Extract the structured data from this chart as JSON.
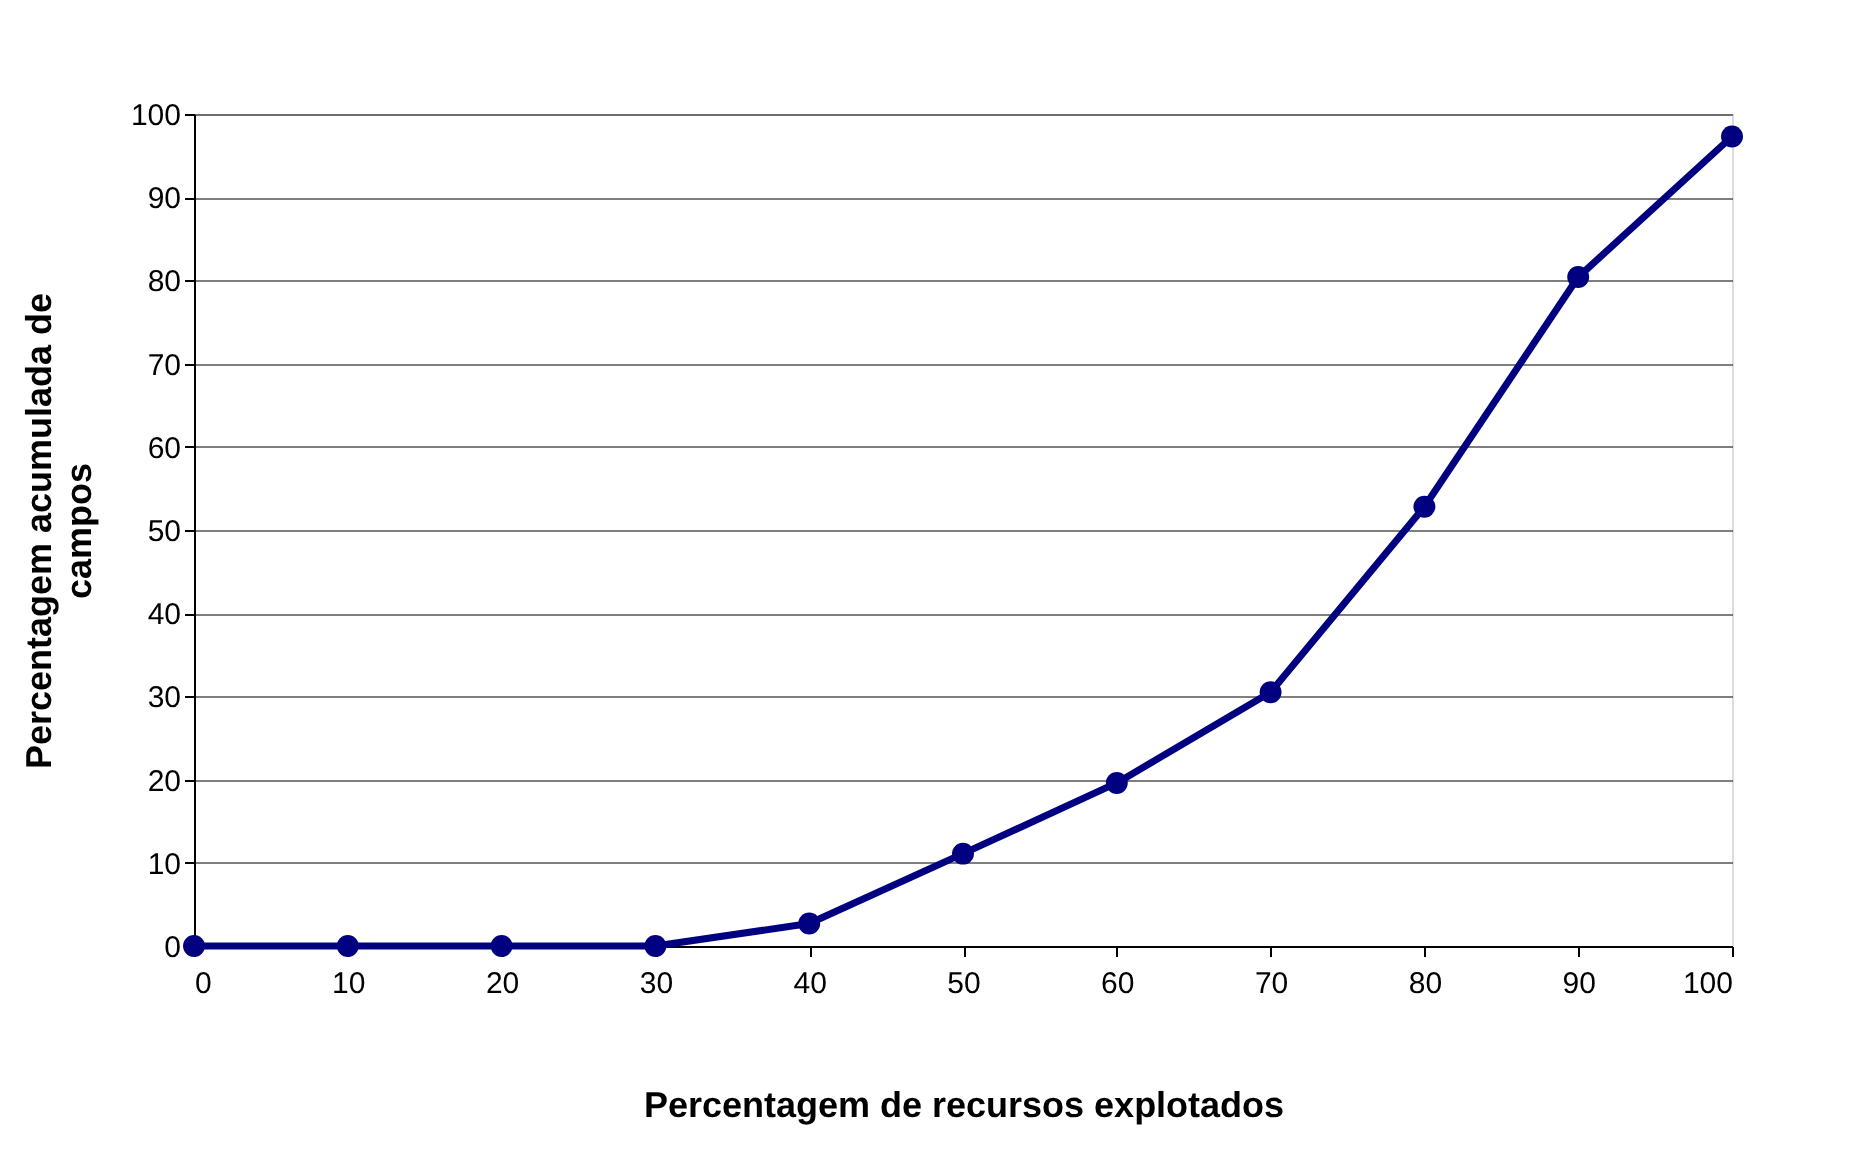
{
  "chart_data": {
    "type": "line",
    "xlabel": "Percentagem de recursos explotados",
    "ylabel": "Percentagem acumulada de campos",
    "x": [
      0,
      10,
      20,
      30,
      40,
      50,
      60,
      70,
      80,
      90,
      100
    ],
    "series": [
      {
        "color": "#000080",
        "values": [
          0,
          0,
          0,
          0,
          2.7,
          11.1,
          19.6,
          30.5,
          52.8,
          80.4,
          97.3
        ]
      }
    ],
    "xlim": [
      0,
      100
    ],
    "xticks": [
      0,
      10,
      20,
      30,
      40,
      50,
      60,
      70,
      80,
      90,
      100
    ],
    "ylim": [
      0,
      100
    ],
    "yticks": [
      0,
      10,
      20,
      30,
      40,
      50,
      60,
      70,
      80,
      90,
      100
    ],
    "grid": "y",
    "marker": "circle",
    "line_style": "solid"
  }
}
